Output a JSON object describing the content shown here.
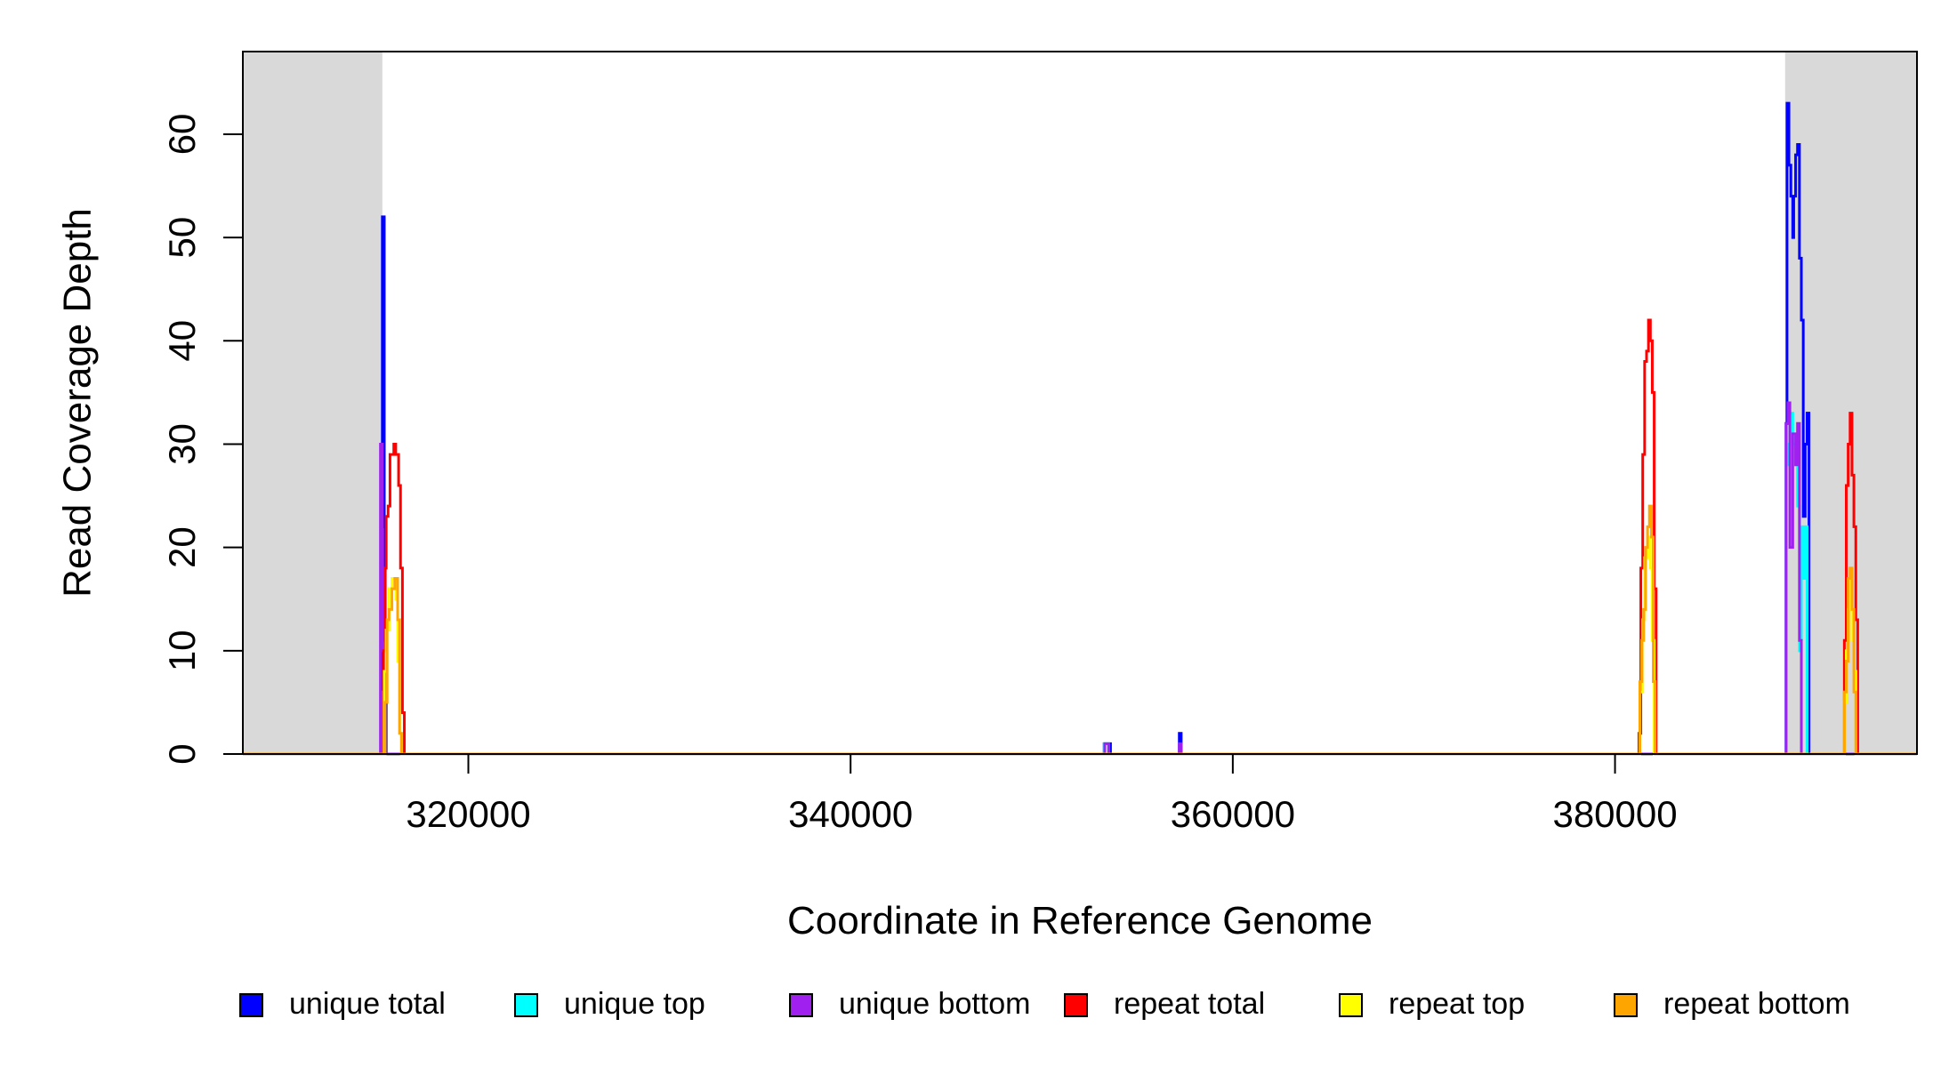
{
  "chart_data": {
    "type": "line",
    "title": "",
    "xlabel": "Coordinate in Reference Genome",
    "ylabel": "Read Coverage Depth",
    "xlim": [
      308200,
      395800
    ],
    "ylim": [
      0,
      68
    ],
    "xticks": [
      320000,
      340000,
      360000,
      380000
    ],
    "yticks": [
      0,
      10,
      20,
      30,
      40,
      50,
      60
    ],
    "shaded_regions": [
      [
        308200,
        315500
      ],
      [
        388900,
        395800
      ]
    ],
    "shade_color": "#d9d9d9",
    "grid": false,
    "legend_position": "bottom",
    "series": [
      {
        "name": "unique total",
        "color": "#0000ff",
        "points": [
          [
            308200,
            0
          ],
          [
            315500,
            0
          ],
          [
            315500,
            52
          ],
          [
            315600,
            52
          ],
          [
            315600,
            22
          ],
          [
            315650,
            22
          ],
          [
            315650,
            11
          ],
          [
            315700,
            11
          ],
          [
            315700,
            0
          ],
          [
            353300,
            0
          ],
          [
            353300,
            1
          ],
          [
            353600,
            1
          ],
          [
            353600,
            0
          ],
          [
            357200,
            0
          ],
          [
            357200,
            2
          ],
          [
            357300,
            2
          ],
          [
            357300,
            0
          ],
          [
            388950,
            0
          ],
          [
            388950,
            32
          ],
          [
            389000,
            32
          ],
          [
            389000,
            63
          ],
          [
            389100,
            63
          ],
          [
            389100,
            57
          ],
          [
            389200,
            57
          ],
          [
            389200,
            54
          ],
          [
            389300,
            54
          ],
          [
            389300,
            50
          ],
          [
            389350,
            50
          ],
          [
            389350,
            54
          ],
          [
            389450,
            54
          ],
          [
            389450,
            58
          ],
          [
            389550,
            58
          ],
          [
            389550,
            59
          ],
          [
            389650,
            59
          ],
          [
            389650,
            48
          ],
          [
            389750,
            48
          ],
          [
            389750,
            42
          ],
          [
            389850,
            42
          ],
          [
            389850,
            23
          ],
          [
            389950,
            23
          ],
          [
            389950,
            30
          ],
          [
            390050,
            30
          ],
          [
            390050,
            33
          ],
          [
            390150,
            33
          ],
          [
            390150,
            0
          ],
          [
            395800,
            0
          ]
        ]
      },
      {
        "name": "unique top",
        "color": "#00ffff",
        "points": [
          [
            308200,
            0
          ],
          [
            315500,
            0
          ],
          [
            315500,
            6
          ],
          [
            315600,
            6
          ],
          [
            315600,
            0
          ],
          [
            353250,
            0
          ],
          [
            353250,
            1
          ],
          [
            353500,
            1
          ],
          [
            353500,
            0
          ],
          [
            388950,
            0
          ],
          [
            388950,
            28
          ],
          [
            389050,
            28
          ],
          [
            389050,
            30
          ],
          [
            389150,
            30
          ],
          [
            389150,
            33
          ],
          [
            389300,
            33
          ],
          [
            389300,
            30
          ],
          [
            389450,
            30
          ],
          [
            389450,
            28
          ],
          [
            389550,
            28
          ],
          [
            389550,
            24
          ],
          [
            389650,
            24
          ],
          [
            389650,
            10
          ],
          [
            389750,
            10
          ],
          [
            389750,
            22
          ],
          [
            389850,
            22
          ],
          [
            389850,
            17
          ],
          [
            389950,
            17
          ],
          [
            389950,
            22
          ],
          [
            390050,
            22
          ],
          [
            390050,
            0
          ],
          [
            395800,
            0
          ]
        ]
      },
      {
        "name": "unique bottom",
        "color": "#a020f0",
        "points": [
          [
            308200,
            0
          ],
          [
            315400,
            0
          ],
          [
            315400,
            30
          ],
          [
            315500,
            30
          ],
          [
            315500,
            10
          ],
          [
            315600,
            10
          ],
          [
            315600,
            0
          ],
          [
            353300,
            0
          ],
          [
            353300,
            1
          ],
          [
            353500,
            1
          ],
          [
            353500,
            0
          ],
          [
            357200,
            0
          ],
          [
            357200,
            1
          ],
          [
            357300,
            1
          ],
          [
            357300,
            0
          ],
          [
            388950,
            0
          ],
          [
            388950,
            32
          ],
          [
            389050,
            32
          ],
          [
            389050,
            34
          ],
          [
            389150,
            34
          ],
          [
            389150,
            20
          ],
          [
            389300,
            20
          ],
          [
            389300,
            31
          ],
          [
            389450,
            31
          ],
          [
            389450,
            28
          ],
          [
            389550,
            28
          ],
          [
            389550,
            32
          ],
          [
            389650,
            32
          ],
          [
            389650,
            11
          ],
          [
            389750,
            11
          ],
          [
            389750,
            0
          ],
          [
            395800,
            0
          ]
        ]
      },
      {
        "name": "repeat total",
        "color": "#ff0000",
        "points": [
          [
            308200,
            0
          ],
          [
            315550,
            0
          ],
          [
            315550,
            10
          ],
          [
            315650,
            10
          ],
          [
            315650,
            18
          ],
          [
            315700,
            18
          ],
          [
            315700,
            23
          ],
          [
            315800,
            23
          ],
          [
            315800,
            24
          ],
          [
            315900,
            24
          ],
          [
            315900,
            29
          ],
          [
            316100,
            29
          ],
          [
            316100,
            30
          ],
          [
            316200,
            30
          ],
          [
            316200,
            29
          ],
          [
            316350,
            29
          ],
          [
            316350,
            26
          ],
          [
            316450,
            26
          ],
          [
            316450,
            18
          ],
          [
            316550,
            18
          ],
          [
            316550,
            4
          ],
          [
            316650,
            4
          ],
          [
            316650,
            0
          ],
          [
            381250,
            0
          ],
          [
            381250,
            2
          ],
          [
            381350,
            2
          ],
          [
            381350,
            18
          ],
          [
            381450,
            18
          ],
          [
            381450,
            29
          ],
          [
            381550,
            29
          ],
          [
            381550,
            38
          ],
          [
            381650,
            38
          ],
          [
            381650,
            39
          ],
          [
            381750,
            39
          ],
          [
            381750,
            42
          ],
          [
            381850,
            42
          ],
          [
            381850,
            40
          ],
          [
            381950,
            40
          ],
          [
            381950,
            35
          ],
          [
            382050,
            35
          ],
          [
            382050,
            16
          ],
          [
            382150,
            16
          ],
          [
            382150,
            0
          ],
          [
            392000,
            0
          ],
          [
            392000,
            11
          ],
          [
            392100,
            11
          ],
          [
            392100,
            26
          ],
          [
            392200,
            26
          ],
          [
            392200,
            30
          ],
          [
            392300,
            30
          ],
          [
            392300,
            33
          ],
          [
            392400,
            33
          ],
          [
            392400,
            27
          ],
          [
            392500,
            27
          ],
          [
            392500,
            22
          ],
          [
            392600,
            22
          ],
          [
            392600,
            13
          ],
          [
            392700,
            13
          ],
          [
            392700,
            0
          ],
          [
            395800,
            0
          ]
        ]
      },
      {
        "name": "repeat top",
        "color": "#ffff00",
        "points": [
          [
            308200,
            0
          ],
          [
            315600,
            0
          ],
          [
            315600,
            8
          ],
          [
            315700,
            8
          ],
          [
            315700,
            12
          ],
          [
            315850,
            12
          ],
          [
            315850,
            16
          ],
          [
            316000,
            16
          ],
          [
            316000,
            17
          ],
          [
            316200,
            17
          ],
          [
            316200,
            15
          ],
          [
            316300,
            15
          ],
          [
            316300,
            9
          ],
          [
            316400,
            9
          ],
          [
            316400,
            2
          ],
          [
            316500,
            2
          ],
          [
            316500,
            0
          ],
          [
            381300,
            0
          ],
          [
            381300,
            6
          ],
          [
            381450,
            6
          ],
          [
            381450,
            13
          ],
          [
            381550,
            13
          ],
          [
            381550,
            19
          ],
          [
            381700,
            19
          ],
          [
            381700,
            21
          ],
          [
            381850,
            21
          ],
          [
            381850,
            18
          ],
          [
            381950,
            18
          ],
          [
            381950,
            11
          ],
          [
            382050,
            11
          ],
          [
            382050,
            0
          ],
          [
            392000,
            0
          ],
          [
            392000,
            5
          ],
          [
            392100,
            5
          ],
          [
            392100,
            10
          ],
          [
            392200,
            10
          ],
          [
            392200,
            14
          ],
          [
            392300,
            14
          ],
          [
            392300,
            17
          ],
          [
            392400,
            17
          ],
          [
            392400,
            11
          ],
          [
            392500,
            11
          ],
          [
            392500,
            8
          ],
          [
            392600,
            8
          ],
          [
            392600,
            0
          ],
          [
            395800,
            0
          ]
        ]
      },
      {
        "name": "repeat bottom",
        "color": "#ffa500",
        "points": [
          [
            308200,
            0
          ],
          [
            315650,
            0
          ],
          [
            315650,
            5
          ],
          [
            315750,
            5
          ],
          [
            315750,
            13
          ],
          [
            315850,
            13
          ],
          [
            315850,
            14
          ],
          [
            316000,
            14
          ],
          [
            316000,
            16
          ],
          [
            316150,
            16
          ],
          [
            316150,
            17
          ],
          [
            316300,
            17
          ],
          [
            316300,
            13
          ],
          [
            316400,
            13
          ],
          [
            316400,
            2
          ],
          [
            316500,
            2
          ],
          [
            316500,
            0
          ],
          [
            381300,
            0
          ],
          [
            381300,
            7
          ],
          [
            381400,
            7
          ],
          [
            381400,
            11
          ],
          [
            381500,
            11
          ],
          [
            381500,
            14
          ],
          [
            381600,
            14
          ],
          [
            381600,
            20
          ],
          [
            381700,
            20
          ],
          [
            381700,
            22
          ],
          [
            381800,
            22
          ],
          [
            381800,
            24
          ],
          [
            381900,
            24
          ],
          [
            381900,
            21
          ],
          [
            382000,
            21
          ],
          [
            382000,
            7
          ],
          [
            382100,
            7
          ],
          [
            382100,
            0
          ],
          [
            392000,
            0
          ],
          [
            392000,
            6
          ],
          [
            392100,
            6
          ],
          [
            392100,
            9
          ],
          [
            392200,
            9
          ],
          [
            392200,
            17
          ],
          [
            392300,
            17
          ],
          [
            392300,
            18
          ],
          [
            392400,
            18
          ],
          [
            392400,
            14
          ],
          [
            392500,
            14
          ],
          [
            392500,
            6
          ],
          [
            392600,
            6
          ],
          [
            392600,
            0
          ],
          [
            395800,
            0
          ]
        ]
      }
    ]
  }
}
